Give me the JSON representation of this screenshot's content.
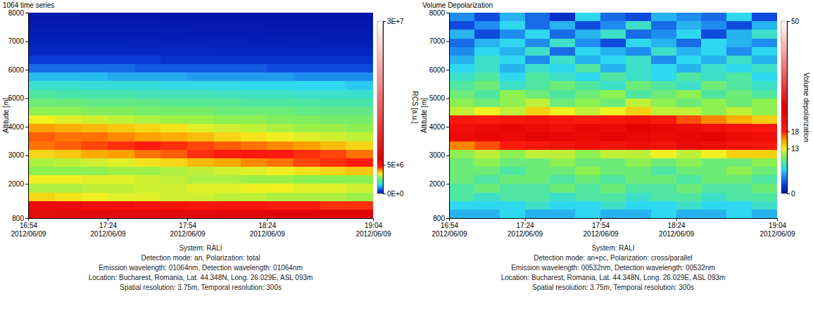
{
  "chart_data": [
    {
      "type": "heatmap",
      "title": "1064 time series",
      "ylabel": "Altitude [m]",
      "xlim": [
        "2012/06/09 16:54",
        "2012/06/09 19:04"
      ],
      "xticks": [
        {
          "value": "2012/06/09 16:54",
          "label": "16:54\n2012/06/09"
        },
        {
          "value": "2012/06/09 17:24",
          "label": "17:24\n2012/06/09"
        },
        {
          "value": "2012/06/09 17:54",
          "label": "17:54\n2012/06/09"
        },
        {
          "value": "2012/06/09 18:24",
          "label": "18:24\n2012/06/09"
        },
        {
          "value": "2012/06/09 19:04",
          "label": "19:04\n2012/06/09"
        }
      ],
      "ylim": [
        800,
        8000
      ],
      "yticks": [
        800,
        2000,
        3000,
        4000,
        5000,
        6000,
        7000,
        8000
      ],
      "x_bins": [
        "2012/06/09 16:54",
        "2012/06/09 17:04",
        "2012/06/09 17:14",
        "2012/06/09 17:24",
        "2012/06/09 17:34",
        "2012/06/09 17:44",
        "2012/06/09 17:54",
        "2012/06/09 18:04",
        "2012/06/09 18:14",
        "2012/06/09 18:24",
        "2012/06/09 18:34",
        "2012/06/09 18:44",
        "2012/06/09 18:54",
        "2012/06/09 19:04"
      ],
      "y_bins": [
        800,
        1100,
        1400,
        1700,
        2000,
        2300,
        2600,
        2900,
        3200,
        3500,
        3800,
        4100,
        4400,
        4700,
        5000,
        5300,
        5600,
        5900,
        6200,
        6500,
        6800,
        7100,
        7400,
        7700,
        8000
      ],
      "cells": [
        [
          7200000.0,
          7100000.0,
          7000000.0,
          7000000.0,
          6900000.0,
          6800000.0,
          6800000.0,
          6700000.0,
          6700000.0,
          6600000.0,
          6600000.0,
          6500000.0,
          6500000.0
        ],
        [
          5500000.0,
          5500000.0,
          5300000.0,
          5200000.0,
          5000000.0,
          5000000.0,
          4800000.0,
          4800000.0,
          4800000.0,
          4600000.0,
          4600000.0,
          4500000.0,
          4500000.0
        ],
        [
          3600000.0,
          3500000.0,
          3400000.0,
          3300000.0,
          3300000.0,
          3200000.0,
          3200000.0,
          3100000.0,
          3100000.0,
          3000000.0,
          3000000.0,
          3000000.0,
          2900000.0
        ],
        [
          3000000.0,
          3000000.0,
          3100000.0,
          3100000.0,
          3200000.0,
          3200000.0,
          3300000.0,
          3300000.0,
          3400000.0,
          3400000.0,
          3300000.0,
          3300000.0,
          3200000.0
        ],
        [
          3400000.0,
          3400000.0,
          3300000.0,
          3300000.0,
          3200000.0,
          3100000.0,
          3000000.0,
          3000000.0,
          2900000.0,
          2900000.0,
          2800000.0,
          2800000.0,
          2800000.0
        ],
        [
          2800000.0,
          2800000.0,
          2800000.0,
          2900000.0,
          2900000.0,
          3000000.0,
          3100000.0,
          3200000.0,
          3300000.0,
          3400000.0,
          3500000.0,
          3600000.0,
          3700000.0
        ],
        [
          3000000.0,
          3100000.0,
          3200000.0,
          3300000.0,
          3500000.0,
          3600000.0,
          3800000.0,
          3900000.0,
          4100000.0,
          4200000.0,
          4400000.0,
          4500000.0,
          4600000.0
        ],
        [
          3600000.0,
          3700000.0,
          3900000.0,
          4000000.0,
          4200000.0,
          4300000.0,
          4500000.0,
          4600000.0,
          4700000.0,
          4600000.0,
          4500000.0,
          4400000.0,
          4200000.0
        ],
        [
          4200000.0,
          4300000.0,
          4400000.0,
          4500000.0,
          4600000.0,
          4500000.0,
          4400000.0,
          4300000.0,
          4200000.0,
          4100000.0,
          4000000.0,
          3800000.0,
          3600000.0
        ],
        [
          4300000.0,
          4200000.0,
          4200000.0,
          4100000.0,
          4000000.0,
          3900000.0,
          3800000.0,
          3600000.0,
          3500000.0,
          3400000.0,
          3300000.0,
          3200000.0,
          3100000.0
        ],
        [
          4000000.0,
          3900000.0,
          3800000.0,
          3700000.0,
          3600000.0,
          3500000.0,
          3300000.0,
          3200000.0,
          3100000.0,
          3000000.0,
          2900000.0,
          2900000.0,
          2800000.0
        ],
        [
          3400000.0,
          3300000.0,
          3200000.0,
          3100000.0,
          3000000.0,
          2900000.0,
          2900000.0,
          2800000.0,
          2800000.0,
          2700000.0,
          2700000.0,
          2600000.0,
          2600000.0
        ],
        [
          2800000.0,
          2800000.0,
          2700000.0,
          2700000.0,
          2600000.0,
          2600000.0,
          2600000.0,
          2500000.0,
          2500000.0,
          2500000.0,
          2400000.0,
          2400000.0,
          2400000.0
        ],
        [
          2500000.0,
          2500000.0,
          2400000.0,
          2400000.0,
          2400000.0,
          2300000.0,
          2300000.0,
          2300000.0,
          2200000.0,
          2200000.0,
          2200000.0,
          2100000.0,
          2100000.0
        ],
        [
          2200000.0,
          2100000.0,
          2100000.0,
          2100000.0,
          2000000.0,
          2000000.0,
          2000000.0,
          1900000.0,
          1900000.0,
          1900000.0,
          1800000.0,
          1800000.0,
          1800000.0
        ],
        [
          1800000.0,
          1800000.0,
          1700000.0,
          1700000.0,
          1700000.0,
          1600000.0,
          1600000.0,
          1600000.0,
          1500000.0,
          1500000.0,
          1500000.0,
          1500000.0,
          1400000.0
        ],
        [
          1300000.0,
          1300000.0,
          1300000.0,
          1200000.0,
          1200000.0,
          1200000.0,
          1100000.0,
          1100000.0,
          1100000.0,
          1100000.0,
          1000000.0,
          1000000.0,
          1000000.0
        ],
        [
          800000.0,
          800000.0,
          800000.0,
          800000.0,
          700000.0,
          700000.0,
          700000.0,
          700000.0,
          700000.0,
          600000.0,
          600000.0,
          600000.0,
          600000.0
        ],
        [
          500000.0,
          500000.0,
          500000.0,
          500000.0,
          500000.0,
          400000.0,
          400000.0,
          400000.0,
          400000.0,
          400000.0,
          400000.0,
          400000.0,
          400000.0
        ],
        [
          320000.0,
          320000.0,
          310000.0,
          310000.0,
          300000.0,
          300000.0,
          300000.0,
          290000.0,
          290000.0,
          290000.0,
          280000.0,
          280000.0,
          280000.0
        ],
        [
          260000.0,
          260000.0,
          250000.0,
          250000.0,
          250000.0,
          240000.0,
          240000.0,
          240000.0,
          230000.0,
          230000.0,
          230000.0,
          220000.0,
          220000.0
        ],
        [
          210000.0,
          210000.0,
          200000.0,
          200000.0,
          200000.0,
          200000.0,
          190000.0,
          190000.0,
          190000.0,
          180000.0,
          180000.0,
          180000.0,
          180000.0
        ],
        [
          180000.0,
          180000.0,
          170000.0,
          170000.0,
          170000.0,
          160000.0,
          160000.0,
          160000.0,
          160000.0,
          150000.0,
          150000.0,
          150000.0,
          150000.0
        ],
        [
          150000.0,
          150000.0,
          140000.0,
          140000.0,
          140000.0,
          130000.0,
          130000.0,
          130000.0,
          130000.0,
          120000.0,
          120000.0,
          120000.0,
          120000.0
        ]
      ],
      "colorbar": {
        "label": "RCS [a.u.]",
        "range": [
          0,
          30000000.0
        ],
        "ticks": [
          {
            "value": 0,
            "label": "0E+0"
          },
          {
            "value": 5000000.0,
            "label": "5E+6"
          },
          {
            "value": 30000000.0,
            "label": "3E+7"
          }
        ]
      },
      "annotations": [
        "System: RALI",
        "Detection mode: an, Polarization: total",
        "Emission wavelength: 01064nm, Detection wavelength: 01064nm",
        "Location: Bucharest, Romania, Lat. 44.348N, Long. 26.029E, ASL 093m",
        "Spatial resolution: 3.75m, Temporal resolution: 300s"
      ]
    },
    {
      "type": "heatmap",
      "title": "Volume Depolarization",
      "ylabel": "Altitude [m]",
      "xlim": [
        "2012/06/09 16:54",
        "2012/06/09 19:04"
      ],
      "xticks": [
        {
          "value": "2012/06/09 16:54",
          "label": "16:54\n2012/06/09"
        },
        {
          "value": "2012/06/09 17:24",
          "label": "17:24\n2012/06/09"
        },
        {
          "value": "2012/06/09 17:54",
          "label": "17:54\n2012/06/09"
        },
        {
          "value": "2012/06/09 18:24",
          "label": "18:24\n2012/06/09"
        },
        {
          "value": "2012/06/09 19:04",
          "label": "19:04\n2012/06/09"
        }
      ],
      "ylim": [
        800,
        8000
      ],
      "yticks": [
        800,
        2000,
        3000,
        4000,
        5000,
        6000,
        7000,
        8000
      ],
      "x_bins": [
        "2012/06/09 16:54",
        "2012/06/09 17:04",
        "2012/06/09 17:14",
        "2012/06/09 17:24",
        "2012/06/09 17:34",
        "2012/06/09 17:44",
        "2012/06/09 17:54",
        "2012/06/09 18:04",
        "2012/06/09 18:14",
        "2012/06/09 18:24",
        "2012/06/09 18:34",
        "2012/06/09 18:44",
        "2012/06/09 18:54",
        "2012/06/09 19:04"
      ],
      "y_bins": [
        800,
        1100,
        1400,
        1700,
        2000,
        2300,
        2600,
        2900,
        3200,
        3500,
        3800,
        4100,
        4400,
        4700,
        5000,
        5300,
        5600,
        5900,
        6200,
        6500,
        6800,
        7100,
        7400,
        7700,
        8000
      ],
      "cells": [
        [
          6,
          6,
          7,
          6,
          6,
          7,
          6,
          6,
          7,
          6,
          6,
          7,
          6
        ],
        [
          7,
          7,
          7,
          8,
          7,
          7,
          8,
          7,
          7,
          8,
          7,
          7,
          8
        ],
        [
          9,
          8,
          9,
          9,
          8,
          9,
          9,
          8,
          9,
          9,
          8,
          9,
          9
        ],
        [
          9,
          10,
          9,
          9,
          10,
          9,
          10,
          9,
          9,
          10,
          9,
          9,
          10
        ],
        [
          10,
          9,
          10,
          10,
          9,
          10,
          9,
          10,
          10,
          9,
          10,
          10,
          9
        ],
        [
          10,
          10,
          9,
          10,
          10,
          11,
          10,
          10,
          9,
          10,
          10,
          11,
          10
        ],
        [
          10,
          11,
          10,
          10,
          11,
          10,
          10,
          11,
          10,
          11,
          10,
          10,
          11
        ],
        [
          11,
          12,
          11,
          12,
          12,
          11,
          12,
          12,
          13,
          12,
          13,
          14,
          14
        ],
        [
          16,
          17,
          18,
          19,
          20,
          21,
          20,
          21,
          20,
          22,
          21,
          20,
          19
        ],
        [
          22,
          23,
          22,
          24,
          23,
          22,
          24,
          23,
          22,
          23,
          24,
          22,
          21
        ],
        [
          21,
          22,
          23,
          22,
          21,
          23,
          22,
          24,
          23,
          22,
          21,
          20,
          19
        ],
        [
          19,
          18,
          19,
          20,
          19,
          18,
          19,
          20,
          18,
          17,
          16,
          15,
          14
        ],
        [
          12,
          13,
          12,
          14,
          13,
          12,
          13,
          14,
          12,
          12,
          11,
          12,
          11
        ],
        [
          11,
          10,
          11,
          12,
          10,
          11,
          10,
          12,
          11,
          10,
          11,
          10,
          11
        ],
        [
          10,
          9,
          11,
          10,
          9,
          10,
          11,
          9,
          10,
          11,
          9,
          10,
          9
        ],
        [
          9,
          10,
          8,
          9,
          10,
          9,
          8,
          10,
          9,
          8,
          10,
          9,
          8
        ],
        [
          8,
          9,
          7,
          9,
          8,
          7,
          9,
          8,
          7,
          9,
          8,
          9,
          7
        ],
        [
          7,
          8,
          6,
          8,
          7,
          9,
          6,
          8,
          7,
          6,
          8,
          7,
          8
        ],
        [
          6,
          8,
          7,
          5,
          8,
          6,
          7,
          8,
          5,
          7,
          6,
          8,
          6
        ],
        [
          5,
          7,
          6,
          8,
          4,
          7,
          6,
          5,
          8,
          6,
          7,
          5,
          7
        ],
        [
          4,
          6,
          7,
          5,
          8,
          5,
          3,
          7,
          6,
          4,
          7,
          6,
          5
        ],
        [
          6,
          3,
          5,
          7,
          4,
          6,
          8,
          4,
          5,
          7,
          3,
          6,
          8
        ],
        [
          3,
          5,
          7,
          4,
          6,
          3,
          5,
          8,
          4,
          6,
          5,
          3,
          6
        ],
        [
          5,
          3,
          6,
          4,
          2,
          7,
          4,
          3,
          6,
          5,
          4,
          7,
          3
        ]
      ],
      "colorbar": {
        "label": "Volume depolarization",
        "range": [
          0,
          50
        ],
        "ticks": [
          0,
          13,
          18,
          50
        ]
      },
      "annotations": [
        "System: RALI",
        "Detection mode: an+pc, Polarization: cross/parallel",
        "Emission wavelength: 00532nm, Detection wavelength: 00532nm",
        "Location: Bucharest, Romania, Lat. 44.348N, Long. 26.029E, ASL 093m",
        "Spatial resolution: 3.75m, Temporal resolution: 300s"
      ]
    }
  ]
}
